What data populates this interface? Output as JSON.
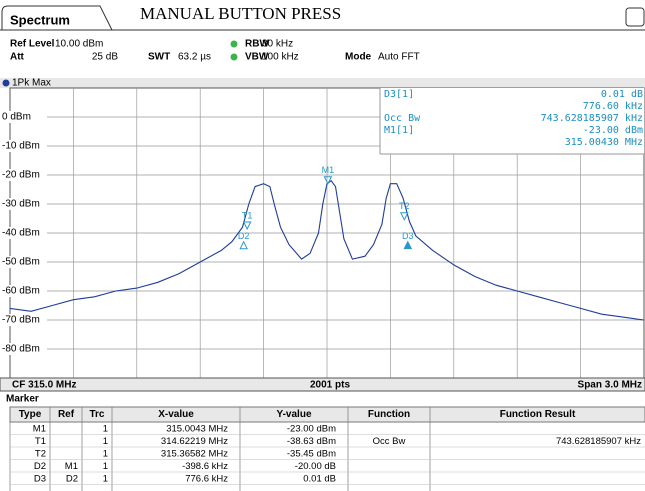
{
  "header": {
    "tab": "Spectrum",
    "title": "MANUAL BUTTON PRESS",
    "settings": [
      {
        "label": "Ref Level",
        "value": "10.00 dBm"
      },
      {
        "label": "Att",
        "value": "25 dB"
      },
      {
        "label": "SWT",
        "value": "63.2 µs"
      },
      {
        "label": "RBW",
        "value": "30 kHz"
      },
      {
        "label": "VBW",
        "value": "100 kHz"
      },
      {
        "label": "Mode",
        "value": "Auto FFT"
      }
    ]
  },
  "trace_label": "1Pk Max",
  "marker_info": [
    {
      "name": "D3[1]",
      "lines": [
        "0.01 dB",
        "776.60 kHz"
      ]
    },
    {
      "name": "Occ Bw",
      "lines": [
        "743.628185907 kHz"
      ]
    },
    {
      "name": "M1[1]",
      "lines": [
        "-23.00 dBm",
        "315.00430 MHz"
      ]
    }
  ],
  "chart_data": {
    "type": "line",
    "x": [
      313.5,
      313.6,
      313.7,
      313.8,
      313.9,
      314.0,
      314.1,
      314.2,
      314.3,
      314.4,
      314.5,
      314.55,
      314.6,
      314.63,
      314.66,
      314.7,
      314.73,
      314.75,
      314.78,
      314.82,
      314.88,
      314.92,
      314.96,
      314.98,
      315.0,
      315.02,
      315.04,
      315.06,
      315.08,
      315.12,
      315.18,
      315.22,
      315.26,
      315.28,
      315.3,
      315.33,
      315.36,
      315.39,
      315.42,
      315.5,
      315.6,
      315.7,
      315.8,
      315.9,
      316.0,
      316.1,
      316.2,
      316.3,
      316.4,
      316.5
    ],
    "series": [
      {
        "name": "1Pk Max",
        "color": "#1f3d99",
        "values": [
          -66,
          -67,
          -65,
          -63,
          -62,
          -60,
          -59,
          -57,
          -54,
          -50,
          -46,
          -43,
          -38,
          -30,
          -24,
          -23,
          -24,
          -30,
          -38,
          -44,
          -49,
          -47,
          -40,
          -30,
          -23,
          -22,
          -24,
          -33,
          -42,
          -49,
          -48,
          -44,
          -37,
          -28,
          -23,
          -23,
          -28,
          -36,
          -41,
          -46,
          -51,
          -55,
          -58,
          -60,
          -62,
          -64,
          -66,
          -68,
          -69,
          -70
        ]
      }
    ],
    "xlim": [
      313.5,
      316.5
    ],
    "ylim": [
      -90,
      10
    ],
    "yticks": [
      {
        "value": 0,
        "label": "0 dBm"
      },
      {
        "value": -10,
        "label": "-10 dBm"
      },
      {
        "value": -20,
        "label": "-20 dBm"
      },
      {
        "value": -30,
        "label": "-30 dBm"
      },
      {
        "value": -40,
        "label": "-40 dBm"
      },
      {
        "value": -50,
        "label": "-50 dBm"
      },
      {
        "value": -60,
        "label": "-60 dBm"
      },
      {
        "value": -70,
        "label": "-70 dBm"
      },
      {
        "value": -80,
        "label": "-80 dBm"
      }
    ],
    "grid": true,
    "marker_color": "#2a97c9",
    "markers": [
      {
        "name": "M1",
        "x": 315.0043,
        "y": -23,
        "shape": "down"
      },
      {
        "name": "T1",
        "x": 314.62219,
        "y": -38.63,
        "shape": "down"
      },
      {
        "name": "T2",
        "x": 315.36582,
        "y": -35.45,
        "shape": "down"
      },
      {
        "name": "D2",
        "x": 314.6057,
        "y": -43,
        "shape": "up"
      },
      {
        "name": "D3",
        "x": 315.3823,
        "y": -42.99,
        "shape": "up"
      }
    ]
  },
  "footer": {
    "left": "CF 315.0 MHz",
    "center": "2001 pts",
    "right": "Span 3.0 MHz"
  },
  "table": {
    "title": "Marker",
    "columns": [
      "Type",
      "Ref",
      "Trc",
      "X-value",
      "Y-value",
      "Function",
      "Function Result"
    ],
    "rows": [
      {
        "type": "M1",
        "trc": "1",
        "x": "315.0043 MHz",
        "y": "-23.00 dBm"
      },
      {
        "type": "T1",
        "trc": "1",
        "x": "314.62219 MHz",
        "y": "-38.63 dBm",
        "function": "Occ Bw",
        "result": "743.628185907 kHz"
      },
      {
        "type": "T2",
        "trc": "1",
        "x": "315.36582 MHz",
        "y": "-35.45 dBm"
      },
      {
        "type": "D2",
        "ref": "M1",
        "trc": "1",
        "x": "-398.6 kHz",
        "y": "-20.00 dB"
      },
      {
        "type": "D3",
        "ref": "D2",
        "trc": "1",
        "x": "776.6 kHz",
        "y": "0.01 dB"
      }
    ]
  }
}
